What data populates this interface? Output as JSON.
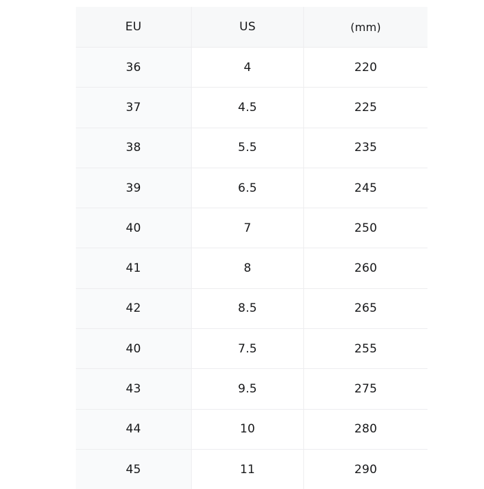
{
  "page": {
    "background": "#ffffff"
  },
  "size_chart": {
    "columns": [
      {
        "key": "eu",
        "label": "EU"
      },
      {
        "key": "us",
        "label": "US"
      },
      {
        "key": "mm",
        "label": "(mm)"
      }
    ],
    "rows": [
      {
        "eu": "36",
        "us": "4",
        "mm": "220"
      },
      {
        "eu": "37",
        "us": "4.5",
        "mm": "225"
      },
      {
        "eu": "38",
        "us": "5.5",
        "mm": "235"
      },
      {
        "eu": "39",
        "us": "6.5",
        "mm": "245"
      },
      {
        "eu": "40",
        "us": "7",
        "mm": "250"
      },
      {
        "eu": "41",
        "us": "8",
        "mm": "260"
      },
      {
        "eu": "42",
        "us": "8.5",
        "mm": "265"
      },
      {
        "eu": "40",
        "us": "7.5",
        "mm": "255"
      },
      {
        "eu": "43",
        "us": "9.5",
        "mm": "275"
      },
      {
        "eu": "44",
        "us": "10",
        "mm": "280"
      },
      {
        "eu": "45",
        "us": "11",
        "mm": "290"
      }
    ],
    "colors": {
      "header_bg": "#f7f8f9",
      "first_column_bg": "#f9fafb",
      "divider": "#ededef",
      "text": "#17181a"
    }
  }
}
